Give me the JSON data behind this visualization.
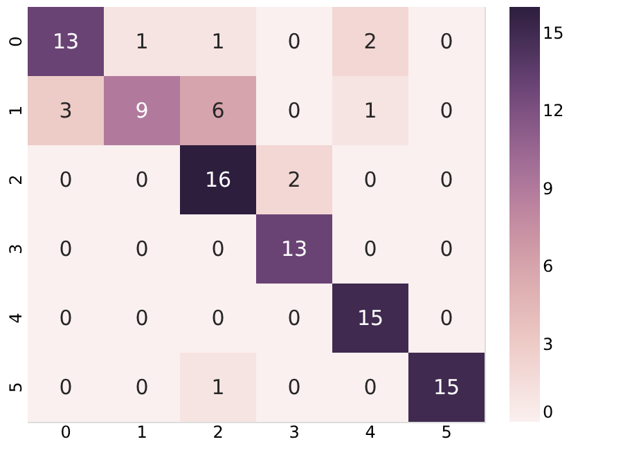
{
  "chart_data": {
    "type": "heatmap",
    "categories": [
      "0",
      "1",
      "2",
      "3",
      "4",
      "5"
    ],
    "y_categories": [
      "0",
      "1",
      "2",
      "3",
      "4",
      "5"
    ],
    "cells": [
      [
        13,
        1,
        1,
        0,
        2,
        0
      ],
      [
        3,
        9,
        6,
        0,
        1,
        0
      ],
      [
        0,
        0,
        16,
        2,
        0,
        0
      ],
      [
        0,
        0,
        0,
        13,
        0,
        0
      ],
      [
        0,
        0,
        0,
        0,
        15,
        0
      ],
      [
        0,
        0,
        1,
        0,
        0,
        15
      ]
    ],
    "clim": [
      0,
      16
    ],
    "cticks": [
      0,
      3,
      6,
      9,
      12,
      15
    ],
    "colors": [
      "#faf0ef",
      "#ecc9c4",
      "#d39fa9",
      "#a8739a",
      "#6e4679",
      "#2d1e3e"
    ],
    "data_labels": true,
    "grid": false
  }
}
